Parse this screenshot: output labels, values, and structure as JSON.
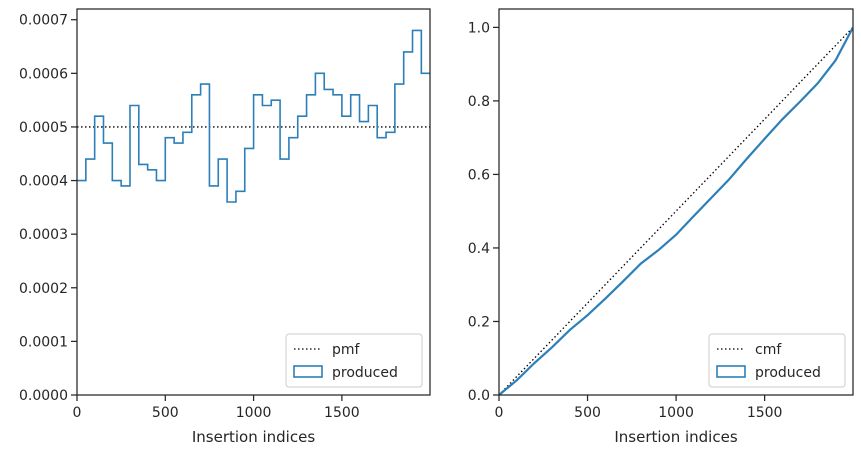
{
  "colors": {
    "series": "#2c7fb8",
    "reference": "#000000",
    "frame": "#262626"
  },
  "chart_data": [
    {
      "type": "line",
      "title": "",
      "xlabel": "Insertion indices",
      "ylabel": "",
      "xlim": [
        0,
        1999
      ],
      "ylim": [
        0,
        0.00072
      ],
      "grid": false,
      "legend_position": "lower-right",
      "xticks": [
        {
          "value": 0,
          "label": "0"
        },
        {
          "value": 500,
          "label": "500"
        },
        {
          "value": 1000,
          "label": "1000"
        },
        {
          "value": 1500,
          "label": "1500"
        }
      ],
      "yticks": [
        {
          "value": 0,
          "label": "0.0000"
        },
        {
          "value": 0.0001,
          "label": "0.0001"
        },
        {
          "value": 0.0002,
          "label": "0.0002"
        },
        {
          "value": 0.0003,
          "label": "0.0003"
        },
        {
          "value": 0.0004,
          "label": "0.0004"
        },
        {
          "value": 0.0005,
          "label": "0.0005"
        },
        {
          "value": 0.0006,
          "label": "0.0006"
        },
        {
          "value": 0.0007,
          "label": "0.0007"
        }
      ],
      "series": [
        {
          "name": "pmf",
          "style": "dotted",
          "x": [
            0,
            1999
          ],
          "y": [
            0.0005,
            0.0005
          ]
        },
        {
          "name": "produced",
          "style": "step",
          "bin_width": 50,
          "values": [
            0.0004,
            0.00044,
            0.00052,
            0.00047,
            0.0004,
            0.00039,
            0.00054,
            0.00043,
            0.00042,
            0.0004,
            0.00048,
            0.00047,
            0.00049,
            0.00056,
            0.00058,
            0.00039,
            0.00044,
            0.00036,
            0.00038,
            0.00046,
            0.00056,
            0.00054,
            0.00055,
            0.00044,
            0.00048,
            0.00052,
            0.00056,
            0.0006,
            0.00057,
            0.00056,
            0.00052,
            0.00056,
            0.00051,
            0.00054,
            0.00048,
            0.00049,
            0.00058,
            0.00064,
            0.00068,
            0.0006
          ]
        }
      ]
    },
    {
      "type": "line",
      "title": "",
      "xlabel": "Insertion indices",
      "ylabel": "",
      "xlim": [
        0,
        1999
      ],
      "ylim": [
        0,
        1.05
      ],
      "grid": false,
      "legend_position": "lower-right",
      "xticks": [
        {
          "value": 0,
          "label": "0"
        },
        {
          "value": 500,
          "label": "500"
        },
        {
          "value": 1000,
          "label": "1000"
        },
        {
          "value": 1500,
          "label": "1500"
        }
      ],
      "yticks": [
        {
          "value": 0,
          "label": "0.0"
        },
        {
          "value": 0.2,
          "label": "0.2"
        },
        {
          "value": 0.4,
          "label": "0.4"
        },
        {
          "value": 0.6,
          "label": "0.6"
        },
        {
          "value": 0.8,
          "label": "0.8"
        },
        {
          "value": 1.0,
          "label": "1.0"
        }
      ],
      "series": [
        {
          "name": "cmf",
          "style": "dotted",
          "x": [
            0,
            1999
          ],
          "y": [
            0,
            1.0
          ]
        },
        {
          "name": "produced",
          "style": "solid",
          "x": [
            0,
            100,
            200,
            300,
            400,
            500,
            600,
            700,
            800,
            900,
            1000,
            1100,
            1200,
            1300,
            1400,
            1500,
            1600,
            1700,
            1800,
            1900,
            1999
          ],
          "y": [
            0,
            0.04,
            0.087,
            0.13,
            0.177,
            0.217,
            0.262,
            0.309,
            0.357,
            0.394,
            0.436,
            0.487,
            0.537,
            0.587,
            0.643,
            0.697,
            0.75,
            0.798,
            0.848,
            0.91,
            1.0
          ]
        }
      ]
    }
  ]
}
